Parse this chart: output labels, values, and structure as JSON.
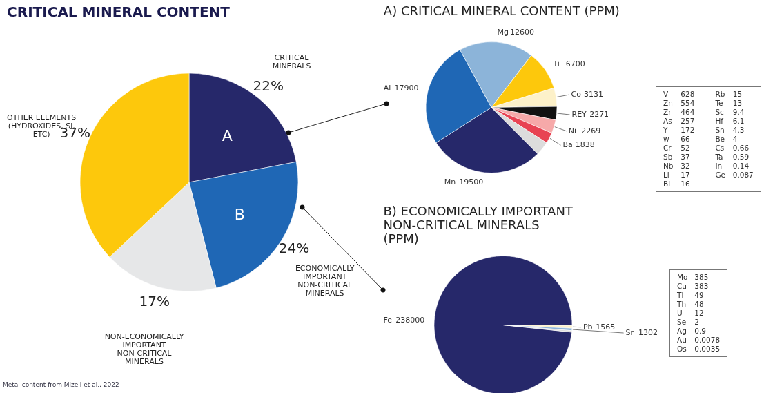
{
  "chart_data": [
    {
      "type": "pie",
      "title": "CRITICAL MINERAL CONTENT",
      "categories": [
        "CRITICAL MINERALS",
        "ECONOMICALLY IMPORTANT NON-CRITICAL MINERALS",
        "NON-ECONOMICALLY IMPORTANT NON-CRITICAL MINERALS",
        "OTHER ELEMENTS (HYDROXIDES, Si, ETC)"
      ],
      "values": [
        22,
        24,
        17,
        37
      ],
      "value_labels": [
        "22%",
        "24%",
        "17%",
        "37%"
      ],
      "colors": [
        "#26286a",
        "#1f67b5",
        "#e6e7e8",
        "#fdc80c"
      ],
      "annotations": [
        {
          "text": "A",
          "x": "CRITICAL MINERALS"
        },
        {
          "text": "B",
          "x": "ECONOMICALLY IMPORTANT NON-CRITICAL MINERALS"
        },
        "Metal content from Mizell et al., 2022"
      ]
    },
    {
      "type": "pie",
      "title": "A) CRITICAL MINERAL CONTENT (PPM)",
      "categories": [
        "Mn",
        "Al",
        "Mg",
        "Ti",
        "Co",
        "REY",
        "Ni",
        "Ba",
        null
      ],
      "values": [
        19500,
        17900,
        12600,
        6700,
        3131,
        2271,
        2269,
        1838,
        2348
      ],
      "value_labels": [
        "19500",
        "17900",
        "12600",
        "6700",
        "3131",
        "2271",
        "2269",
        "1838",
        null
      ],
      "colors": [
        "#26286a",
        "#1f67b5",
        "#8cb4d9",
        "#fdc80c",
        "#fdf1c9",
        "#111111",
        "#f6a9a9",
        "#e84353",
        "#dcdcdc"
      ],
      "annotations": [
        "V 628",
        "Zn 554",
        "Zr 464",
        "As 257",
        "Y 172",
        "w 66",
        "Cr 52",
        "Sb 37",
        "Nb 32",
        "Li 17",
        "Bi 16",
        "Rb 15",
        "Te 13",
        "Sc 9.4",
        "Hf 6.1",
        "Sn 4.3",
        "Be 4",
        "Cs 0.66",
        "Ta 0.59",
        "In 0.14",
        "Ge 0.087"
      ]
    },
    {
      "type": "pie",
      "title": "B) ECONOMICALLY IMPORTANT NON-CRITICAL MINERALS (PPM)",
      "categories": [
        "Fe",
        "Pb",
        "Sr",
        null
      ],
      "values": [
        238000,
        1565,
        1302,
        880
      ],
      "value_labels": [
        "238000",
        "1565",
        "1302",
        null
      ],
      "colors": [
        "#26286a",
        "#fdf1c9",
        "#8cb4d9",
        "#dcdcdc"
      ],
      "annotations": [
        "Mo 385",
        "Cu 383",
        "Tl 49",
        "Th 48",
        "U 12",
        "Se 2",
        "Ag 0.9",
        "Au 0.0078",
        "Os 0.0035"
      ]
    }
  ]
}
